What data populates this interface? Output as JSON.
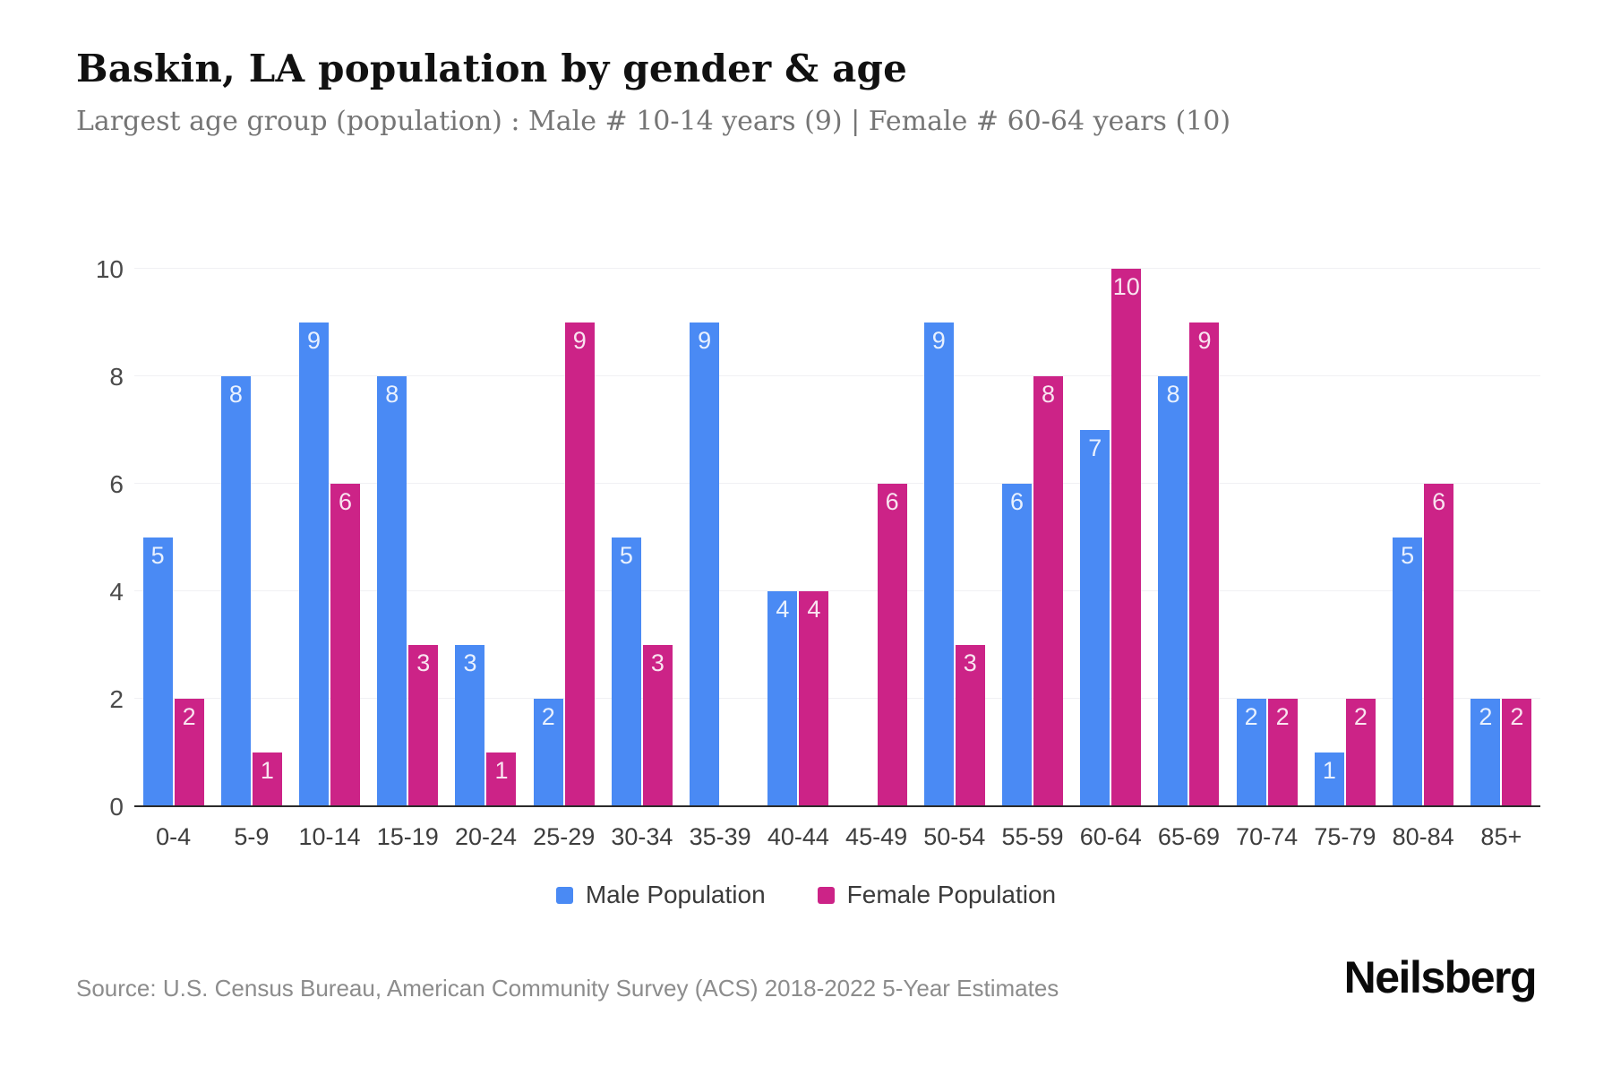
{
  "page": {
    "title": "Baskin, LA population by gender & age",
    "subtitle": "Largest age group (population) : Male # 10-14 years (9) | Female # 60-64 years (10)",
    "source": "Source: U.S. Census Bureau, American Community Survey (ACS) 2018-2022 5-Year Estimates",
    "brand": "Neilsberg"
  },
  "colors": {
    "male": "#4a8af4",
    "female": "#cc2387",
    "grid": "#f1f1f4",
    "axis_line": "#2b2b2b",
    "title": "#111111",
    "subtitle": "#757575",
    "tick": "#4a4a4a",
    "source": "#8c8c8c"
  },
  "chart_data": {
    "type": "bar",
    "title": "Baskin, LA population by gender & age",
    "xlabel": "",
    "ylabel": "",
    "categories": [
      "0-4",
      "5-9",
      "10-14",
      "15-19",
      "20-24",
      "25-29",
      "30-34",
      "35-39",
      "40-44",
      "45-49",
      "50-54",
      "55-59",
      "60-64",
      "65-69",
      "70-74",
      "75-79",
      "80-84",
      "85+"
    ],
    "series": [
      {
        "name": "Male Population",
        "color_key": "male",
        "values": [
          5,
          8,
          9,
          8,
          3,
          2,
          5,
          9,
          4,
          0,
          9,
          6,
          7,
          8,
          2,
          1,
          5,
          2
        ]
      },
      {
        "name": "Female Population",
        "color_key": "female",
        "values": [
          2,
          1,
          6,
          3,
          1,
          9,
          3,
          0,
          4,
          6,
          3,
          8,
          10,
          9,
          2,
          2,
          6,
          2
        ]
      }
    ],
    "ylim": [
      0,
      10
    ],
    "yticks": [
      0,
      2,
      4,
      6,
      8,
      10
    ],
    "grid": "horizontal",
    "legend_position": "bottom",
    "bar_value_labels": "inside-top"
  }
}
